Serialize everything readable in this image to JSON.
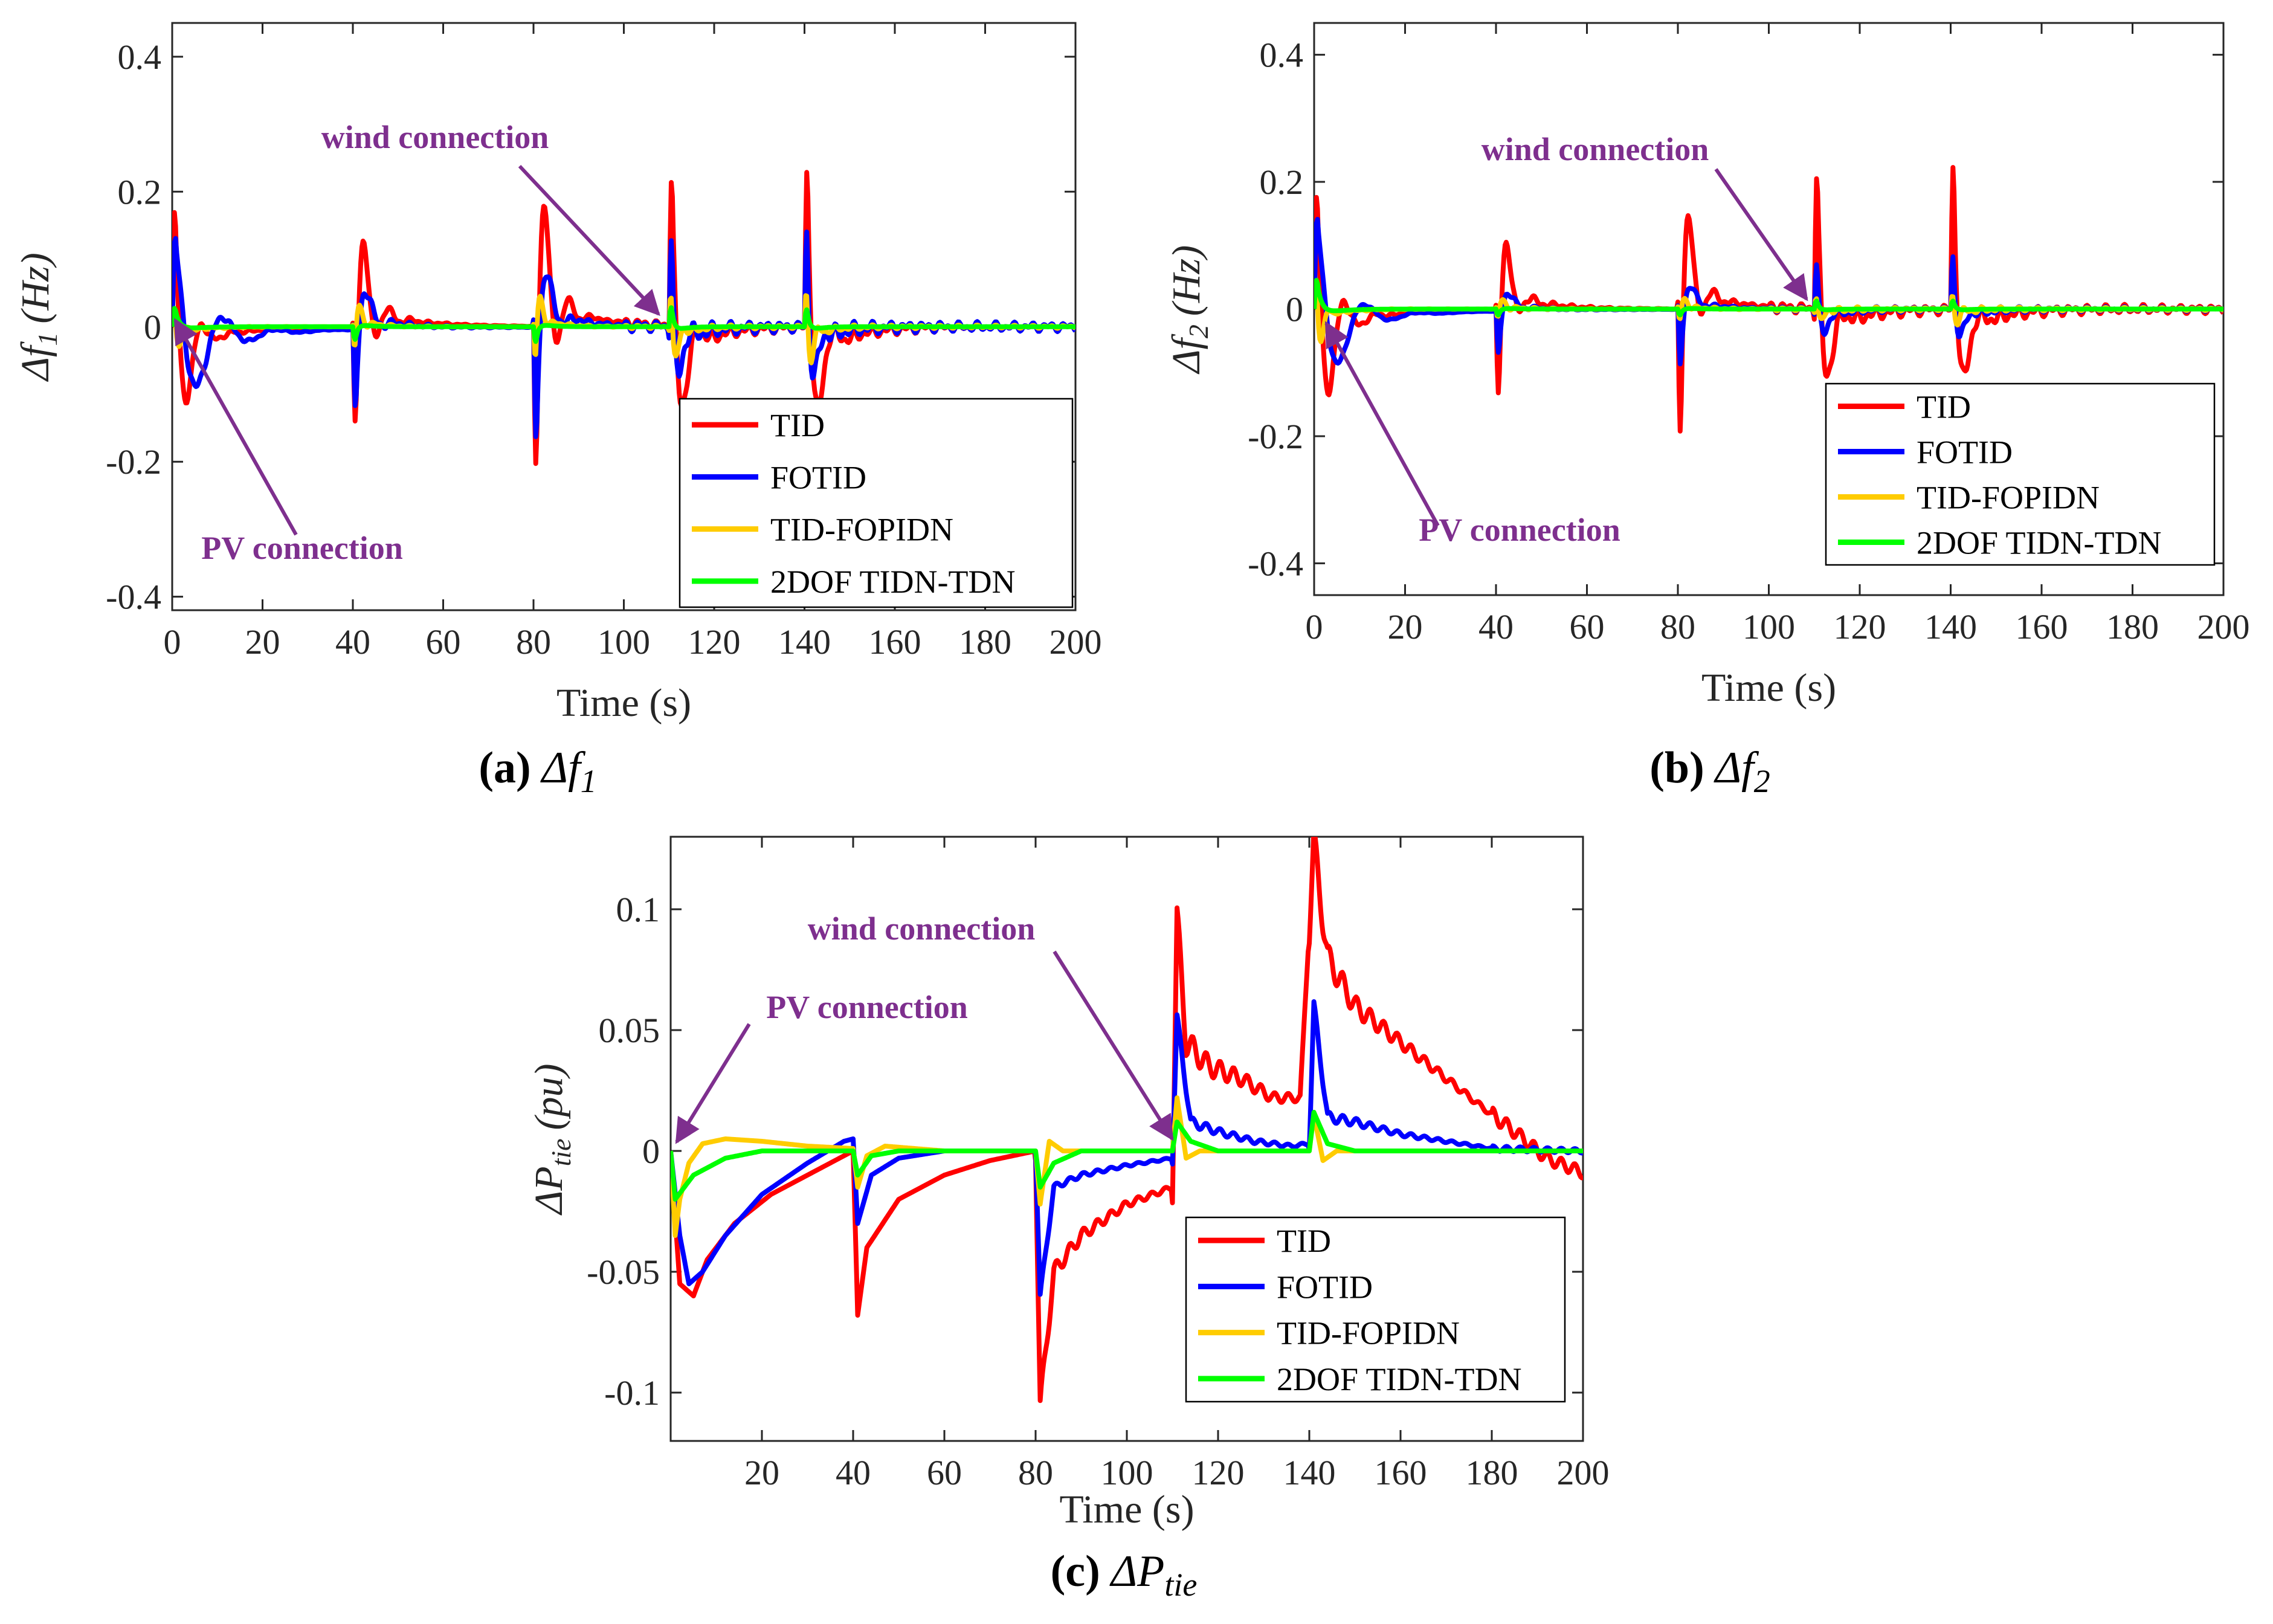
{
  "figure": {
    "colors": {
      "TID": "#ff0000",
      "FOTID": "#0000ff",
      "TID-FOPIDN": "#ffcc00",
      "2DOF TIDN-TDN": "#00ff00",
      "annotation": "#7e2f8e",
      "axis": "#262626"
    }
  },
  "chart_data": [
    {
      "id": "a",
      "type": "line",
      "caption_label": "(a)",
      "caption_symbol": "Δf",
      "caption_sub": "1",
      "xlabel": "Time (s)",
      "ylabel_main": "Δf",
      "ylabel_sub": "1",
      "ylabel_unit": "(Hz)",
      "xlim": [
        0,
        200
      ],
      "ylim": [
        -0.42,
        0.45
      ],
      "xticks": [
        0,
        20,
        40,
        60,
        80,
        100,
        120,
        140,
        160,
        180,
        200
      ],
      "xtick_labels": [
        "0",
        "20",
        "40",
        "60",
        "80",
        "100",
        "120",
        "140",
        "160",
        "180",
        "200"
      ],
      "yticks": [
        -0.4,
        -0.2,
        0,
        0.2,
        0.4
      ],
      "ytick_labels": [
        "-0.4",
        "-0.2",
        "0",
        "0.2",
        "0.4"
      ],
      "legend": [
        "TID",
        "FOTID",
        "TID-FOPIDN",
        "2DOF TIDN-TDN"
      ],
      "legend_position": "lower-right",
      "annotations": [
        {
          "text": "wind connection",
          "target": [
            110,
            0.0
          ]
        },
        {
          "text": "PV connection",
          "target": [
            1,
            0.0
          ]
        }
      ],
      "series": [
        {
          "name": "TID",
          "events": [
            [
              0,
              0.3,
              2.5,
              1.0
            ],
            [
              40,
              -0.28,
              2.5,
              1.3
            ],
            [
              80,
              -0.4,
              2.5,
              1.3
            ],
            [
              110,
              0.41,
              2.0,
              1.0
            ],
            [
              140,
              0.43,
              2.0,
              1.0
            ]
          ],
          "noise": 0.01
        },
        {
          "name": "FOTID",
          "events": [
            [
              0,
              0.18,
              6.0,
              0.6
            ],
            [
              40,
              -0.23,
              1.8,
              1.0
            ],
            [
              80,
              -0.32,
              1.8,
              1.0
            ],
            [
              110,
              0.33,
              1.2,
              1.3
            ],
            [
              140,
              0.34,
              1.2,
              1.3
            ]
          ],
          "noise": 0.012
        },
        {
          "name": "TID-FOPIDN",
          "events": [
            [
              0,
              0.07,
              1.5,
              2.0
            ],
            [
              40,
              -0.11,
              1.0,
              2.0
            ],
            [
              80,
              -0.16,
              1.0,
              2.0
            ],
            [
              110,
              0.17,
              1.0,
              2.0
            ],
            [
              140,
              0.17,
              1.0,
              2.0
            ]
          ],
          "noise": 0.004
        },
        {
          "name": "2DOF TIDN-TDN",
          "events": [
            [
              0,
              0.06,
              1.0,
              0.0
            ],
            [
              40,
              -0.06,
              0.6,
              0.0
            ],
            [
              80,
              -0.07,
              0.6,
              0.0
            ],
            [
              110,
              0.09,
              0.6,
              0.0
            ],
            [
              140,
              0.08,
              0.6,
              0.0
            ]
          ],
          "noise": 0.0
        }
      ]
    },
    {
      "id": "b",
      "type": "line",
      "caption_label": "(b)",
      "caption_symbol": "Δf",
      "caption_sub": "2",
      "xlabel": "Time (s)",
      "ylabel_main": "Δf",
      "ylabel_sub": "2",
      "ylabel_unit": "(Hz)",
      "xlim": [
        0,
        200
      ],
      "ylim": [
        -0.45,
        0.45
      ],
      "xticks": [
        0,
        20,
        40,
        60,
        80,
        100,
        120,
        140,
        160,
        180,
        200
      ],
      "xtick_labels": [
        "0",
        "20",
        "40",
        "60",
        "80",
        "100",
        "120",
        "140",
        "160",
        "180",
        "200"
      ],
      "yticks": [
        -0.4,
        -0.2,
        0,
        0.2,
        0.4
      ],
      "ytick_labels": [
        "-0.4",
        "-0.2",
        "0",
        "0.2",
        "0.4"
      ],
      "legend": [
        "TID",
        "FOTID",
        "TID-FOPIDN",
        "2DOF TIDN-TDN"
      ],
      "legend_position": "lower-right",
      "annotations": [
        {
          "text": "wind connection",
          "target": [
            110,
            0.0
          ]
        },
        {
          "text": "PV connection",
          "target": [
            2,
            0.0
          ]
        }
      ],
      "series": [
        {
          "name": "TID",
          "events": [
            [
              0,
              0.3,
              3.0,
              1.0
            ],
            [
              40,
              -0.28,
              2.0,
              1.3
            ],
            [
              80,
              -0.4,
              2.0,
              1.3
            ],
            [
              110,
              0.41,
              1.8,
              1.0
            ],
            [
              140,
              0.43,
              1.8,
              1.0
            ]
          ],
          "noise": 0.012
        },
        {
          "name": "FOTID",
          "events": [
            [
              0,
              0.2,
              5.0,
              0.6
            ],
            [
              40,
              -0.14,
              1.5,
              1.0
            ],
            [
              80,
              -0.18,
              1.5,
              1.0
            ],
            [
              110,
              0.18,
              1.2,
              1.3
            ],
            [
              140,
              0.2,
              1.2,
              1.3
            ]
          ],
          "noise": 0.006
        },
        {
          "name": "TID-FOPIDN",
          "events": [
            [
              0,
              0.15,
              1.2,
              2.0
            ],
            [
              40,
              -0.05,
              1.0,
              2.0
            ],
            [
              80,
              -0.06,
              1.0,
              2.0
            ],
            [
              110,
              0.07,
              1.0,
              2.0
            ],
            [
              140,
              0.07,
              1.0,
              2.0
            ]
          ],
          "noise": 0.004
        },
        {
          "name": "2DOF TIDN-TDN",
          "events": [
            [
              0,
              0.1,
              1.0,
              0.0
            ],
            [
              40,
              -0.03,
              0.6,
              0.0
            ],
            [
              80,
              -0.03,
              0.6,
              0.0
            ],
            [
              110,
              0.04,
              0.6,
              0.0
            ],
            [
              140,
              0.04,
              0.6,
              0.0
            ]
          ],
          "noise": 0.0
        }
      ]
    },
    {
      "id": "c",
      "type": "line",
      "caption_label": "(c)",
      "caption_symbol": "ΔP",
      "caption_sub": "tie",
      "xlabel": "Time (s)",
      "ylabel_main": "ΔP",
      "ylabel_sub": "tie",
      "ylabel_unit": "(pu)",
      "xlim": [
        0,
        200
      ],
      "ylim": [
        -0.12,
        0.13
      ],
      "xticks": [
        20,
        40,
        60,
        80,
        100,
        120,
        140,
        160,
        180,
        200
      ],
      "xtick_labels": [
        "20",
        "40",
        "60",
        "80",
        "100",
        "120",
        "140",
        "160",
        "180",
        "200"
      ],
      "yticks": [
        -0.1,
        -0.05,
        0,
        0.05,
        0.1
      ],
      "ytick_labels": [
        "-0.1",
        "-0.05",
        "0",
        "0.05",
        "0.1"
      ],
      "legend": [
        "TID",
        "FOTID",
        "TID-FOPIDN",
        "2DOF TIDN-TDN"
      ],
      "legend_position": "lower-right",
      "annotations": [
        {
          "text": "wind connection",
          "target": [
            110,
            0.0
          ]
        },
        {
          "text": "PV connection",
          "target": [
            1,
            0.0
          ]
        }
      ],
      "series": [
        {
          "name": "TID",
          "curve": [
            [
              0,
              0
            ],
            [
              2,
              -0.055
            ],
            [
              5,
              -0.06
            ],
            [
              8,
              -0.045
            ],
            [
              14,
              -0.03
            ],
            [
              22,
              -0.018
            ],
            [
              32,
              -0.008
            ],
            [
              40,
              0.0
            ],
            [
              41,
              -0.068
            ],
            [
              43,
              -0.04
            ],
            [
              50,
              -0.02
            ],
            [
              60,
              -0.01
            ],
            [
              70,
              -0.004
            ],
            [
              80,
              0.0
            ],
            [
              81,
              -0.105
            ],
            [
              84,
              -0.05
            ],
            [
              90,
              -0.035
            ],
            [
              100,
              -0.022
            ],
            [
              110,
              -0.015
            ],
            [
              111,
              0.097
            ],
            [
              113,
              0.045
            ],
            [
              118,
              0.035
            ],
            [
              125,
              0.03
            ],
            [
              132,
              0.022
            ],
            [
              138,
              0.022
            ],
            [
              141,
              0.128
            ],
            [
              144,
              0.08
            ],
            [
              150,
              0.06
            ],
            [
              160,
              0.045
            ],
            [
              170,
              0.03
            ],
            [
              178,
              0.018
            ],
            [
              185,
              0.008
            ],
            [
              192,
              -0.003
            ],
            [
              200,
              -0.009
            ]
          ],
          "noise": 0.004
        },
        {
          "name": "FOTID",
          "curve": [
            [
              0,
              0
            ],
            [
              2,
              -0.035
            ],
            [
              4,
              -0.055
            ],
            [
              7,
              -0.05
            ],
            [
              12,
              -0.035
            ],
            [
              20,
              -0.018
            ],
            [
              30,
              -0.005
            ],
            [
              38,
              0.004
            ],
            [
              40,
              0.005
            ],
            [
              41,
              -0.03
            ],
            [
              44,
              -0.01
            ],
            [
              50,
              -0.003
            ],
            [
              60,
              0.0
            ],
            [
              80,
              0.0
            ],
            [
              81,
              -0.06
            ],
            [
              84,
              -0.015
            ],
            [
              90,
              -0.01
            ],
            [
              100,
              -0.006
            ],
            [
              110,
              -0.003
            ],
            [
              111,
              0.055
            ],
            [
              114,
              0.012
            ],
            [
              120,
              0.008
            ],
            [
              128,
              0.004
            ],
            [
              136,
              0.002
            ],
            [
              140,
              0.003
            ],
            [
              141,
              0.06
            ],
            [
              144,
              0.014
            ],
            [
              150,
              0.012
            ],
            [
              160,
              0.007
            ],
            [
              170,
              0.004
            ],
            [
              180,
              0.001
            ],
            [
              200,
              0.0
            ]
          ],
          "noise": 0.0015
        },
        {
          "name": "TID-FOPIDN",
          "curve": [
            [
              0,
              0
            ],
            [
              1,
              -0.035
            ],
            [
              2,
              -0.02
            ],
            [
              4,
              -0.005
            ],
            [
              7,
              0.003
            ],
            [
              12,
              0.005
            ],
            [
              20,
              0.004
            ],
            [
              30,
              0.002
            ],
            [
              40,
              0.001
            ],
            [
              41,
              -0.015
            ],
            [
              43,
              -0.002
            ],
            [
              47,
              0.002
            ],
            [
              60,
              0.0
            ],
            [
              80,
              0.0
            ],
            [
              81,
              -0.022
            ],
            [
              83,
              0.004
            ],
            [
              86,
              0.0
            ],
            [
              110,
              0.0
            ],
            [
              111,
              0.022
            ],
            [
              113,
              -0.003
            ],
            [
              116,
              0.0
            ],
            [
              140,
              0.0
            ],
            [
              141,
              0.015
            ],
            [
              143,
              -0.004
            ],
            [
              146,
              0.0
            ],
            [
              200,
              0.0
            ]
          ],
          "noise": 0.0
        },
        {
          "name": "2DOF TIDN-TDN",
          "curve": [
            [
              0,
              0
            ],
            [
              1,
              -0.02
            ],
            [
              5,
              -0.01
            ],
            [
              12,
              -0.003
            ],
            [
              20,
              0.0
            ],
            [
              40,
              0.0
            ],
            [
              41,
              -0.01
            ],
            [
              44,
              -0.002
            ],
            [
              50,
              0.0
            ],
            [
              80,
              0.0
            ],
            [
              81,
              -0.015
            ],
            [
              84,
              -0.005
            ],
            [
              90,
              0.0
            ],
            [
              110,
              0.0
            ],
            [
              111,
              0.012
            ],
            [
              114,
              0.004
            ],
            [
              120,
              0.0
            ],
            [
              140,
              0.0
            ],
            [
              141,
              0.016
            ],
            [
              144,
              0.003
            ],
            [
              150,
              0.0
            ],
            [
              200,
              0.0
            ]
          ],
          "noise": 0.0
        }
      ]
    }
  ]
}
